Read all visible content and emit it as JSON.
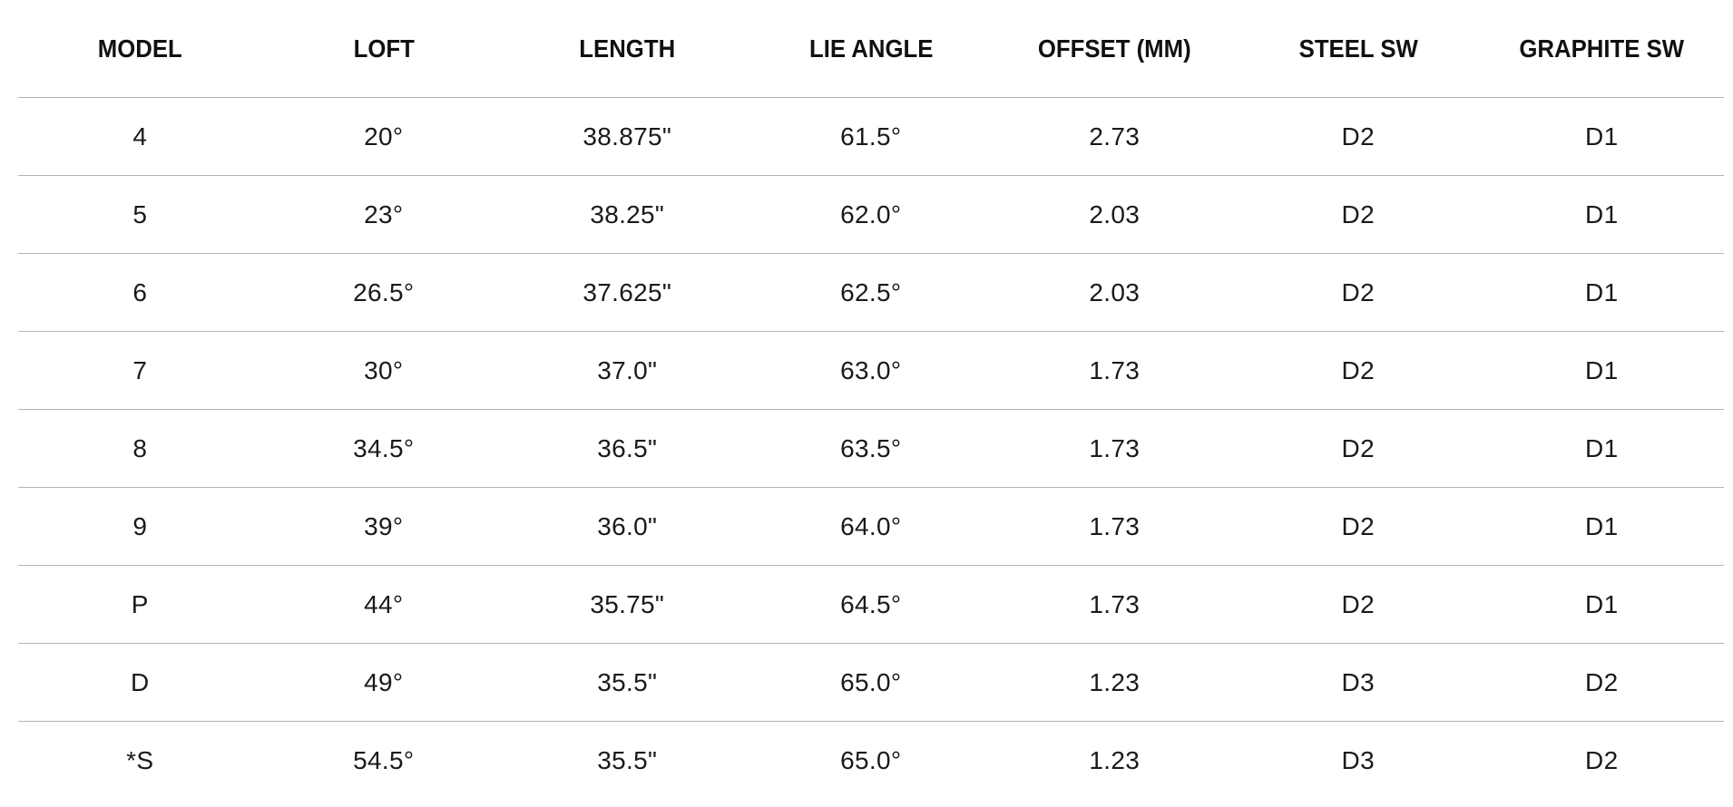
{
  "table": {
    "headers": [
      "MODEL",
      "LOFT",
      "LENGTH",
      "LIE ANGLE",
      "OFFSET (MM)",
      "STEEL SW",
      "GRAPHITE SW"
    ],
    "rows": [
      [
        "4",
        "20°",
        "38.875\"",
        "61.5°",
        "2.73",
        "D2",
        "D1"
      ],
      [
        "5",
        "23°",
        "38.25\"",
        "62.0°",
        "2.03",
        "D2",
        "D1"
      ],
      [
        "6",
        "26.5°",
        "37.625\"",
        "62.5°",
        "2.03",
        "D2",
        "D1"
      ],
      [
        "7",
        "30°",
        "37.0\"",
        "63.0°",
        "1.73",
        "D2",
        "D1"
      ],
      [
        "8",
        "34.5°",
        "36.5\"",
        "63.5°",
        "1.73",
        "D2",
        "D1"
      ],
      [
        "9",
        "39°",
        "36.0\"",
        "64.0°",
        "1.73",
        "D2",
        "D1"
      ],
      [
        "P",
        "44°",
        "35.75\"",
        "64.5°",
        "1.73",
        "D2",
        "D1"
      ],
      [
        "D",
        "49°",
        "35.5\"",
        "65.0°",
        "1.23",
        "D3",
        "D2"
      ],
      [
        "*S",
        "54.5°",
        "35.5\"",
        "65.0°",
        "1.23",
        "D3",
        "D2"
      ]
    ]
  }
}
